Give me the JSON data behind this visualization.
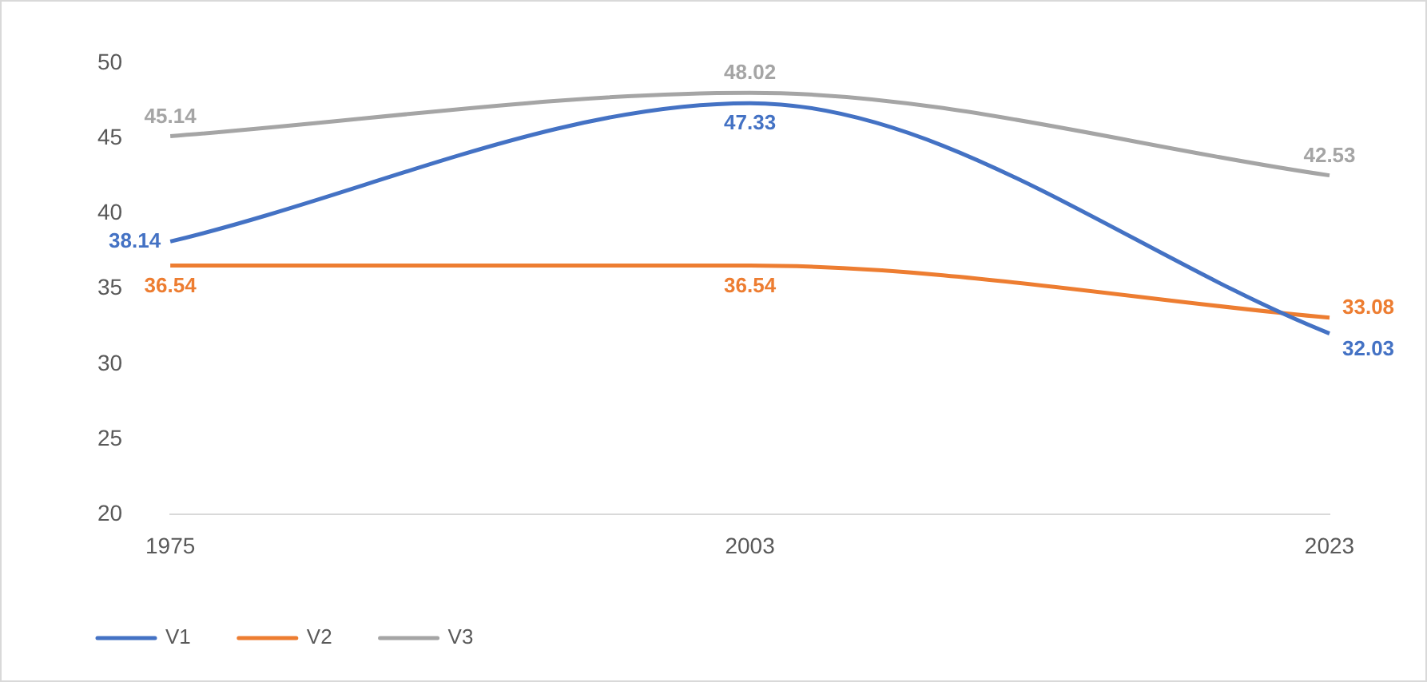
{
  "chart_data": {
    "type": "line",
    "categories": [
      "1975",
      "2003",
      "2023"
    ],
    "series": [
      {
        "name": "V1",
        "color": "#4472c4",
        "values": [
          38.14,
          47.33,
          32.03
        ]
      },
      {
        "name": "V2",
        "color": "#ed7d31",
        "values": [
          36.54,
          36.54,
          33.08
        ]
      },
      {
        "name": "V3",
        "color": "#a5a5a5",
        "values": [
          45.14,
          48.02,
          42.53
        ]
      }
    ],
    "ylim": [
      20,
      50
    ],
    "yticks": [
      20,
      25,
      30,
      35,
      40,
      45,
      50
    ],
    "grid": false,
    "legend": "bottom left",
    "data_labels": true,
    "marker": "none",
    "line_style": "solid"
  }
}
